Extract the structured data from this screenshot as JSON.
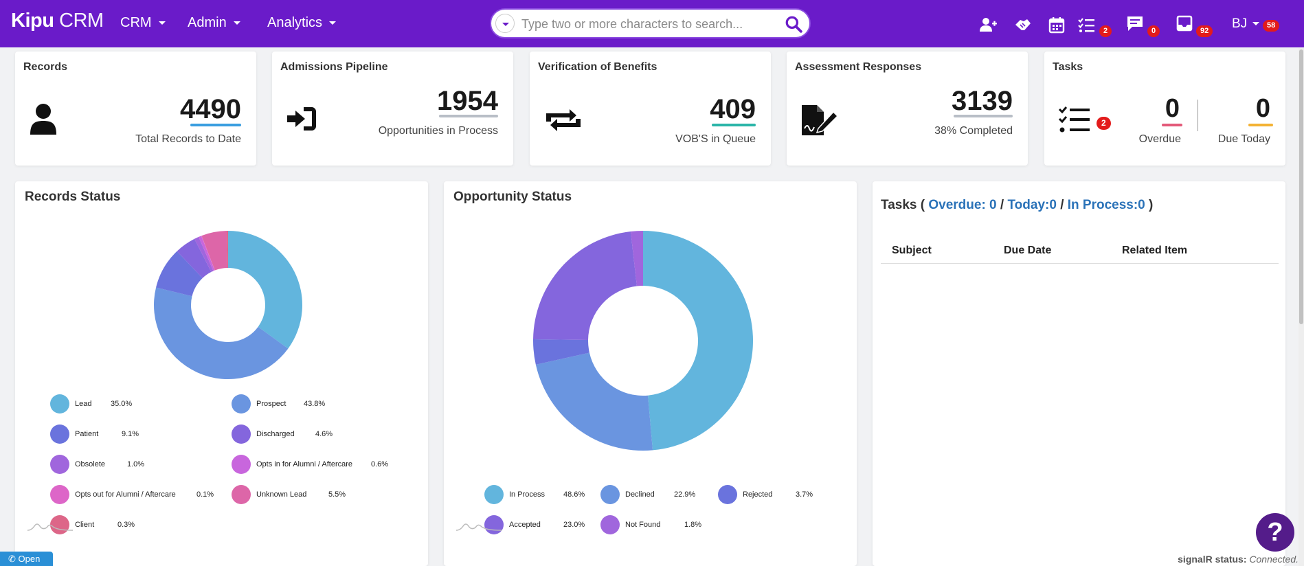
{
  "brand": {
    "name": "Kipu",
    "suffix": "CRM"
  },
  "nav": [
    {
      "label": "CRM"
    },
    {
      "label": "Admin"
    },
    {
      "label": "Analytics"
    }
  ],
  "search": {
    "placeholder": "Type two or more characters to search..."
  },
  "topbar_icons": {
    "tasks_badge": "2",
    "messages_badge": "0",
    "inbox_badge": "92",
    "user_initials": "BJ",
    "user_badge": "58"
  },
  "cards": {
    "records": {
      "title": "Records",
      "value": "4490",
      "label": "Total Records to Date",
      "accent": "#3a9ee0"
    },
    "admissions": {
      "title": "Admissions Pipeline",
      "value": "1954",
      "label": "Opportunities in Process",
      "accent": "#b8bec6"
    },
    "vob": {
      "title": "Verification of Benefits",
      "value": "409",
      "label": "VOB'S in Queue",
      "accent": "#2bb5a8"
    },
    "assessment": {
      "title": "Assessment Responses",
      "value": "3139",
      "label": "38% Completed",
      "accent": "#b8bec6"
    },
    "tasks": {
      "title": "Tasks",
      "badge": "2",
      "overdue_value": "0",
      "overdue_label": "Overdue",
      "overdue_accent": "#e35a79",
      "today_value": "0",
      "today_label": "Due Today",
      "today_accent": "#f3b234"
    }
  },
  "records_status": {
    "title": "Records Status",
    "legend": [
      {
        "label": "Lead",
        "pct": "35.0%",
        "color": "#62b5dd"
      },
      {
        "label": "Prospect",
        "pct": "43.8%",
        "color": "#6a95e0"
      },
      {
        "label": "Patient",
        "pct": "9.1%",
        "color": "#6a73dd"
      },
      {
        "label": "Discharged",
        "pct": "4.6%",
        "color": "#8466dd"
      },
      {
        "label": "Obsolete",
        "pct": "1.0%",
        "color": "#a066dd"
      },
      {
        "label": "Opts in for Alumni / Aftercare",
        "pct": "0.6%",
        "color": "#c866dd"
      },
      {
        "label": "Opts out for Alumni / Aftercare",
        "pct": "0.1%",
        "color": "#dd66c8"
      },
      {
        "label": "Unknown Lead",
        "pct": "5.5%",
        "color": "#dd66a8"
      },
      {
        "label": "Client",
        "pct": "0.3%",
        "color": "#dd6688"
      }
    ]
  },
  "opportunity_status": {
    "title": "Opportunity Status",
    "legend": [
      {
        "label": "In Process",
        "pct": "48.6%",
        "color": "#62b5dd"
      },
      {
        "label": "Declined",
        "pct": "22.9%",
        "color": "#6a95e0"
      },
      {
        "label": "Rejected",
        "pct": "3.7%",
        "color": "#6a73dd"
      },
      {
        "label": "Accepted",
        "pct": "23.0%",
        "color": "#8466dd"
      },
      {
        "label": "Not Found",
        "pct": "1.8%",
        "color": "#a066dd"
      }
    ]
  },
  "tasks_panel": {
    "prefix": "Tasks (",
    "overdue": "Overdue: 0",
    "sep1": "/",
    "today": "Today:0",
    "sep2": "/",
    "in_process": "In Process:0",
    "suffix": ")",
    "columns": [
      "Subject",
      "Due Date",
      "Related Item"
    ]
  },
  "footer": {
    "open_label": "Open",
    "signal_label": "signalR status:",
    "signal_value": "Connected."
  },
  "help_label": "?"
}
